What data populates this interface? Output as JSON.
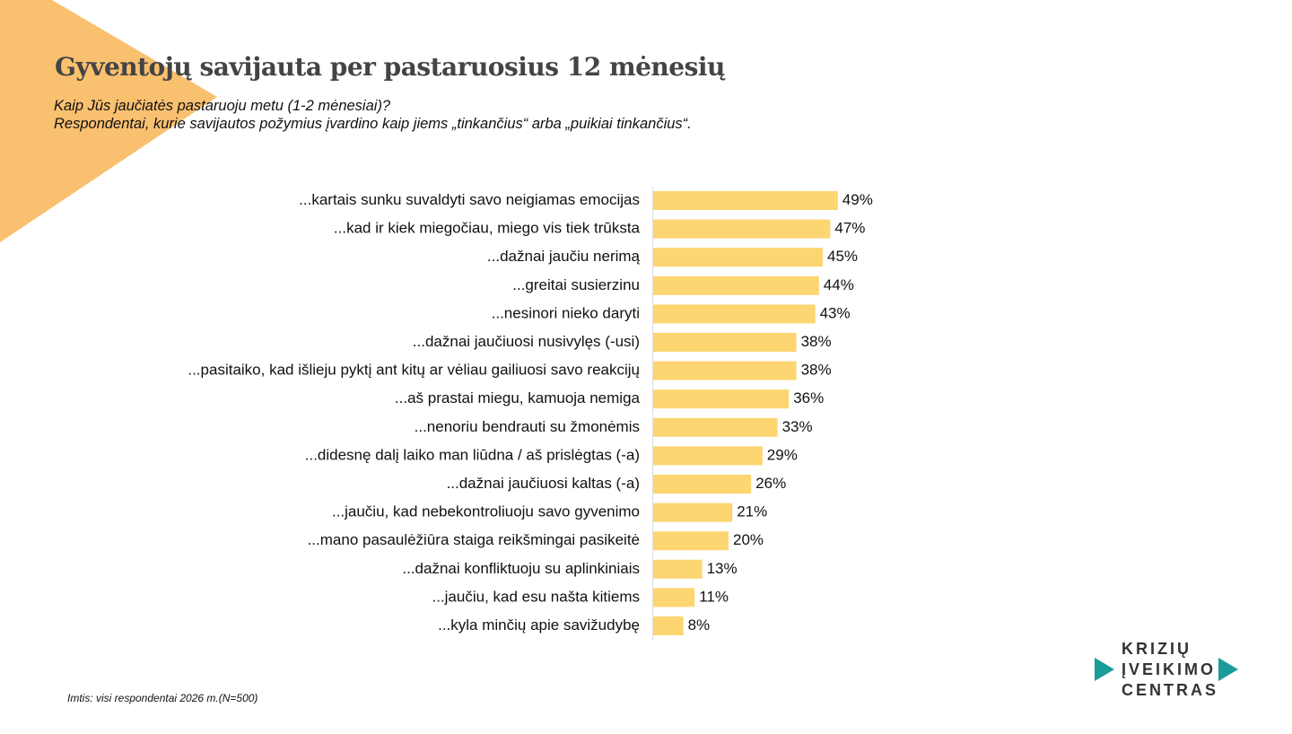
{
  "chart_data": {
    "type": "bar",
    "orientation": "horizontal",
    "title": "Gyventojų savijauta per pastaruosius 12 mėnesių",
    "subtitle": [
      "Kaip Jūs jaučiatės pastaruoju metu (1-2 mėnesiai)?",
      "Respondentai, kurie savijautos požymius įvardino kaip jiems „tinkančius“ arba „puikiai tinkančius“."
    ],
    "categories": [
      "...kartais sunku suvaldyti savo neigiamas emocijas",
      "...kad ir kiek miegočiau, miego vis tiek trūksta",
      "...dažnai jaučiu nerimą",
      "...greitai susierzinu",
      "...nesinori nieko daryti",
      "...dažnai jaučiuosi nusivylęs (-usi)",
      "...pasitaiko, kad išlieju pyktį ant kitų ar vėliau gailiuosi savo reakcijų",
      "...aš prastai miegu, kamuoja nemiga",
      "...nenoriu bendrauti su žmonėmis",
      "...didesnę dalį laiko man liūdna / aš prislėgtas (-a)",
      "...dažnai jaučiuosi kaltas (-a)",
      "...jaučiu, kad nebekontroliuoju savo gyvenimo",
      "...mano pasaulėžiūra staiga reikšmingai pasikeitė",
      "...dažnai konfliktuoju su aplinkiniais",
      "...jaučiu, kad esu našta kitiems",
      "...kyla minčių apie savižudybę"
    ],
    "values": [
      49,
      47,
      45,
      44,
      43,
      38,
      38,
      36,
      33,
      29,
      26,
      21,
      20,
      13,
      11,
      8
    ],
    "value_labels": [
      "49%",
      "47%",
      "45%",
      "44%",
      "43%",
      "38%",
      "38%",
      "36%",
      "33%",
      "29%",
      "26%",
      "21%",
      "20%",
      "13%",
      "11%",
      "8%"
    ],
    "color": "#fdd672",
    "footnote": "Imtis: visi respondentai 2026 m.(N=500)"
  },
  "logo": {
    "lines": [
      "KRIZIŲ",
      "ĮVEIKIMO",
      "CENTRAS"
    ]
  }
}
